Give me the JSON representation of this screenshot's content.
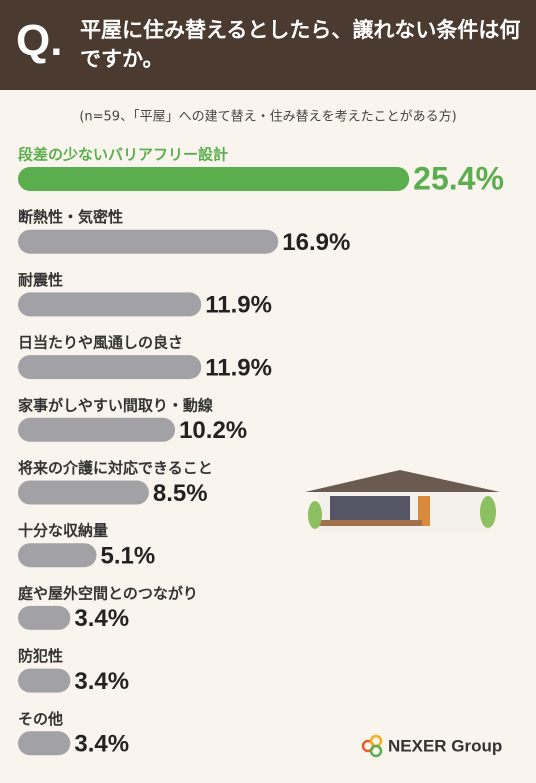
{
  "header": {
    "mark": "Q."
  },
  "chart_data": {
    "type": "bar",
    "orientation": "horizontal",
    "title": "平屋に住み替えるとしたら、譲れない条件は何ですか。",
    "subtitle": "(n=59、「平屋」への建て替え・住み替えを考えたことがある方)",
    "categories": [
      "段差の少ないバリアフリー設計",
      "断熱性・気密性",
      "耐震性",
      "日当たりや風通しの良さ",
      "家事がしやすい間取り・動線",
      "将来の介護に対応できること",
      "十分な収納量",
      "庭や屋外空間とのつながり",
      "防犯性",
      "その他"
    ],
    "values": [
      25.4,
      16.9,
      11.9,
      11.9,
      10.2,
      8.5,
      5.1,
      3.4,
      3.4,
      3.4
    ],
    "value_labels": [
      "25.4%",
      "16.9%",
      "11.9%",
      "11.9%",
      "10.2%",
      "8.5%",
      "5.1%",
      "3.4%",
      "3.4%",
      "3.4%"
    ],
    "colors": [
      "#5aae4e",
      "#a2a2a6",
      "#a2a2a6",
      "#a2a2a6",
      "#a2a2a6",
      "#a2a2a6",
      "#a2a2a6",
      "#a2a2a6",
      "#a2a2a6",
      "#a2a2a6"
    ]
  },
  "footer": {
    "logo": "NEXER Group"
  }
}
